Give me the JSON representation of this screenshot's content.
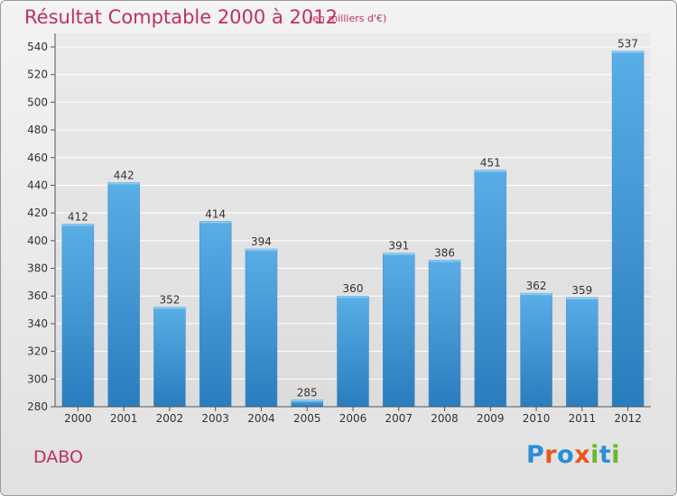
{
  "header": {
    "title": "Résultat Comptable 2000 à 2012",
    "subtitle": "(en milliers d'€)"
  },
  "footer": {
    "place": "DABO",
    "logo": "Proxiti"
  },
  "colors": {
    "title": "#c0305e",
    "bar_top": "#5aaee6",
    "bar_bottom": "#2a7dbd",
    "logo": [
      "#2a8fd6",
      "#e8571c",
      "#2a8fd6",
      "#e8571c",
      "#6cb82a",
      "#2a8fd6",
      "#6cb82a"
    ]
  },
  "chart_data": {
    "type": "bar",
    "title": "Résultat Comptable 2000 à 2012",
    "subtitle": "(en milliers d'€)",
    "xlabel": "",
    "ylabel": "",
    "categories": [
      "2000",
      "2001",
      "2002",
      "2003",
      "2004",
      "2005",
      "2006",
      "2007",
      "2008",
      "2009",
      "2010",
      "2011",
      "2012"
    ],
    "values": [
      412,
      442,
      352,
      414,
      394,
      285,
      360,
      391,
      386,
      451,
      362,
      359,
      537
    ],
    "ylim": [
      280,
      540
    ],
    "yticks": [
      280,
      300,
      320,
      340,
      360,
      380,
      400,
      420,
      440,
      460,
      480,
      500,
      520,
      540
    ],
    "grid": true,
    "data_labels": true
  }
}
